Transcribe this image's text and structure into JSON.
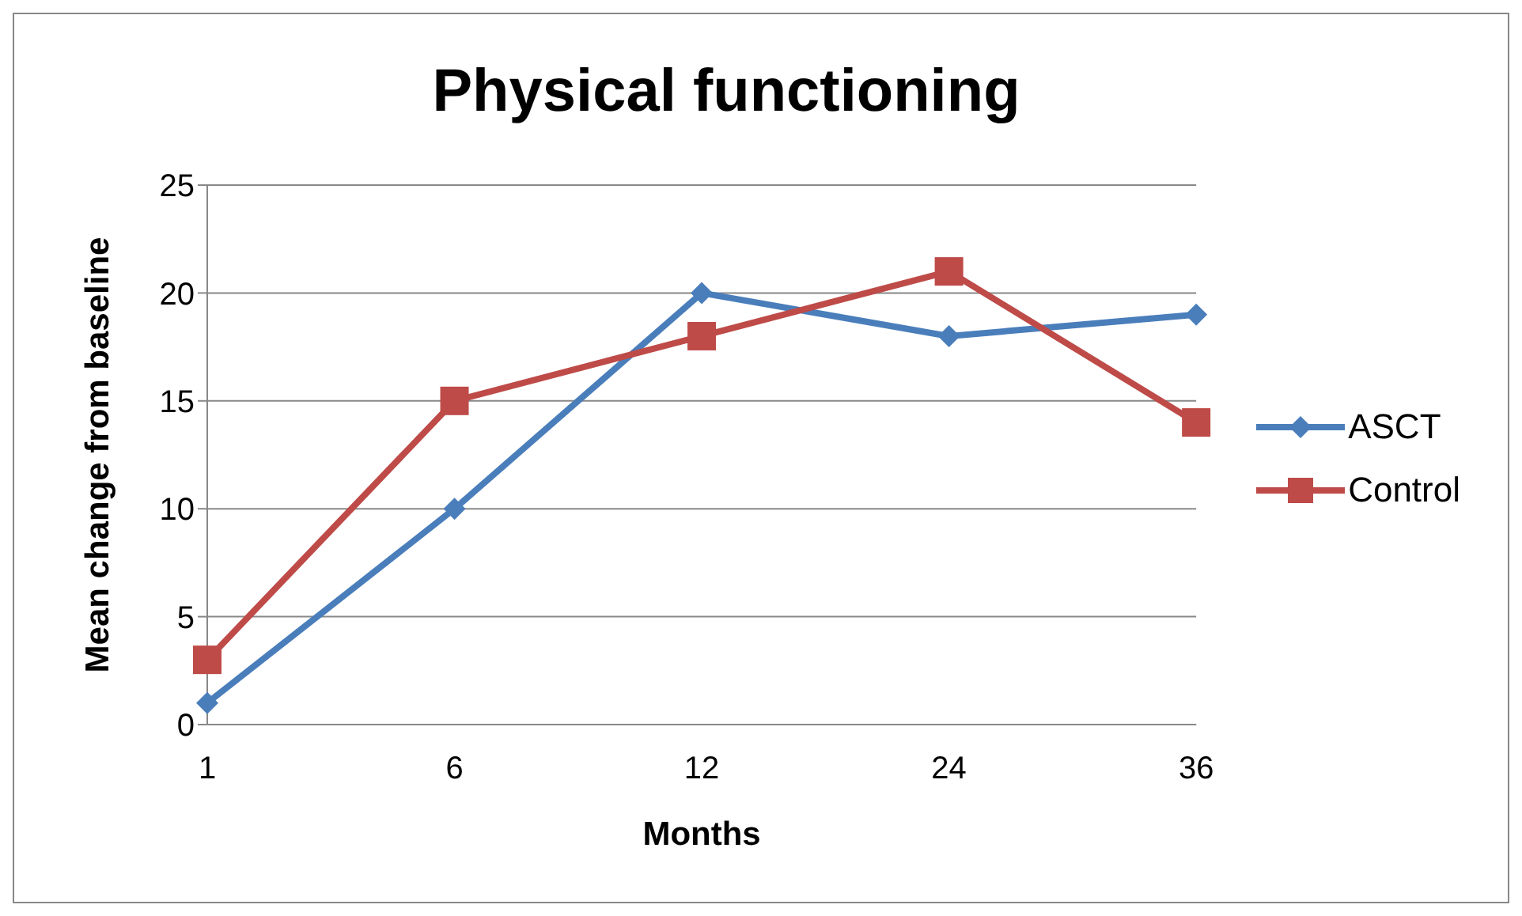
{
  "chart_data": {
    "type": "line",
    "title": "Physical functioning",
    "xlabel": "Months",
    "ylabel": "Mean change from baseline",
    "categories": [
      "1",
      "6",
      "12",
      "24",
      "36"
    ],
    "series": [
      {
        "name": "ASCT",
        "color": "#4a7ebb",
        "values": [
          1,
          10,
          20,
          18,
          19
        ],
        "marker": "diamond"
      },
      {
        "name": "Control",
        "color": "#be4b48",
        "values": [
          3,
          15,
          18,
          21,
          14
        ],
        "marker": "square"
      }
    ],
    "ylim": [
      0,
      25
    ],
    "yticks": [
      0,
      5,
      10,
      15,
      20,
      25
    ],
    "grid": "y",
    "legend": "right"
  }
}
